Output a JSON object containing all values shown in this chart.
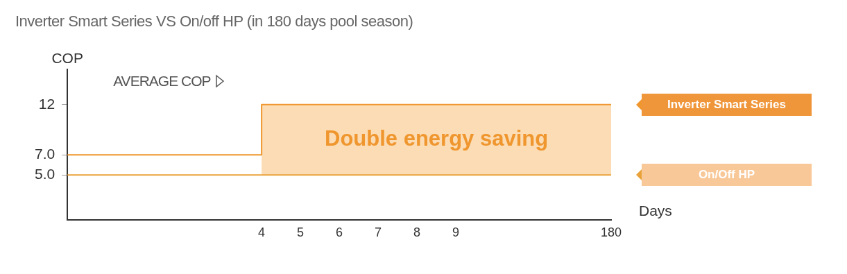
{
  "chart_data": {
    "type": "step",
    "title": "Inverter Smart Series VS On/off HP (in 180 days pool season)",
    "xlabel": "Days",
    "ylabel": "COP",
    "categories": [
      null,
      null,
      null,
      null,
      null,
      "4",
      "5",
      "6",
      "7",
      "8",
      "9",
      null,
      null,
      null,
      "180"
    ],
    "series": [
      {
        "name": "Inverter Smart Series",
        "color": "#f0962e",
        "values": [
          7,
          7,
          7,
          7,
          7,
          12,
          12,
          12,
          12,
          12,
          12,
          12,
          12,
          12,
          12
        ]
      },
      {
        "name": "On/Off HP",
        "color": "#e9a23a",
        "values": [
          5,
          5,
          5,
          5,
          5,
          5,
          5,
          5,
          5,
          5,
          5,
          5,
          5,
          5,
          5
        ]
      }
    ],
    "ylim": [
      0.5,
      15.5
    ],
    "yticks": [
      {
        "value": 5,
        "label": "5.0"
      },
      {
        "value": 7,
        "label": "7.0"
      },
      12
    ],
    "bands": [
      {
        "axis": "x",
        "from": "4",
        "to": "180",
        "label": "Double energy saving",
        "color": "#fbdcb4"
      }
    ],
    "annotations": [
      "AVERAGE COP"
    ],
    "legend": "right",
    "grid": false
  }
}
